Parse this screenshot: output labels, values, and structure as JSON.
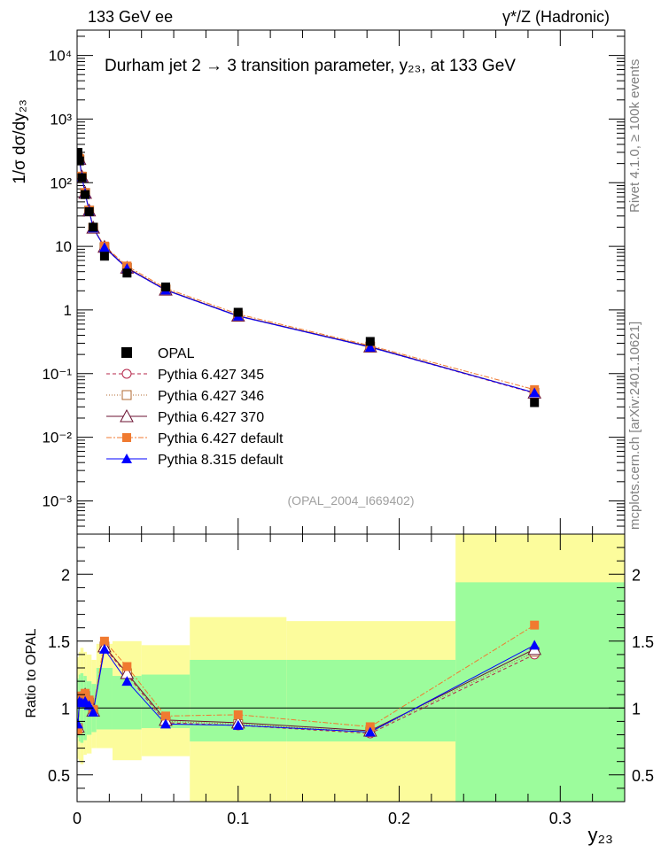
{
  "header": {
    "left_label": "133 GeV ee",
    "right_label": "γ*/Z (Hadronic)",
    "side_label_top": "Rivet 4.1.0, ≥ 100k events",
    "side_label_bottom": "mcplots.cern.ch [arXiv:2401.10621]"
  },
  "chart_data": [
    {
      "type": "scatter",
      "panel": "main",
      "title": "Durham jet 2  →  3 transition parameter, y₂₃, at 133 GeV",
      "ylabel": "1/σ  dσ/dy₂₃",
      "yscale": "log",
      "ylim": [
        0.0003,
        25000
      ],
      "xlim": [
        0,
        0.34
      ],
      "ytick_labels": [
        "10⁴",
        "10³",
        "10²",
        "10",
        "1",
        "10⁻¹",
        "10⁻²",
        "10⁻³"
      ],
      "watermark": "(OPAL_2004_I669402)",
      "x": [
        0.0005,
        0.0015,
        0.003,
        0.005,
        0.0075,
        0.01,
        0.017,
        0.031,
        0.055,
        0.1,
        0.182,
        0.284
      ],
      "series": [
        {
          "name": "OPAL",
          "color": "#000000",
          "marker": "square",
          "values": [
            300,
            220,
            120,
            65,
            35,
            20,
            7,
            3.8,
            2.3,
            0.92,
            0.32,
            0.035
          ]
        },
        {
          "name": "Pythia 6.427 345",
          "color": "#b5264a",
          "marker": "circle-open",
          "dash": "4,3",
          "values": [
            245,
            225,
            122,
            68,
            36,
            19.5,
            9.5,
            4.5,
            2.05,
            0.8,
            0.26,
            0.049
          ]
        },
        {
          "name": "Pythia 6.427 346",
          "color": "#b06a30",
          "marker": "square-open",
          "dash": "1,2",
          "values": [
            250,
            230,
            124,
            69,
            36.5,
            19.6,
            9.7,
            4.6,
            2.1,
            0.81,
            0.265,
            0.05
          ]
        },
        {
          "name": "Pythia 6.427 370",
          "color": "#6b1030",
          "marker": "triangle-open",
          "dash": "",
          "values": [
            265,
            235,
            125,
            69,
            36.5,
            19.6,
            9.8,
            4.6,
            2.08,
            0.81,
            0.265,
            0.05
          ]
        },
        {
          "name": "Pythia 6.427 default",
          "color": "#f07a30",
          "marker": "square",
          "dash": "6,2,2,2",
          "values": [
            255,
            240,
            127,
            70,
            36.8,
            19.8,
            10.1,
            4.9,
            2.2,
            0.86,
            0.275,
            0.056
          ]
        },
        {
          "name": "Pythia 8.315 default",
          "color": "#0000ff",
          "marker": "triangle",
          "dash": "",
          "values": [
            270,
            230,
            123,
            68,
            36,
            19.4,
            9.6,
            4.5,
            2.05,
            0.8,
            0.26,
            0.05
          ]
        }
      ]
    },
    {
      "type": "line",
      "panel": "ratio",
      "ylabel": "Ratio to OPAL",
      "xlabel": "y₂₃",
      "ylim": [
        0.3,
        2.3
      ],
      "xlim": [
        0,
        0.34
      ],
      "ytick_labels": [
        "2",
        "1.5",
        "1",
        "0.5"
      ],
      "ytick_labels_right": [
        "2",
        "1.5",
        "1",
        "0.5"
      ],
      "xtick_labels": [
        "0",
        "0.1",
        "0.2",
        "0.3"
      ],
      "x": [
        0.0005,
        0.0015,
        0.003,
        0.005,
        0.0075,
        0.01,
        0.017,
        0.031,
        0.055,
        0.1,
        0.182,
        0.284
      ],
      "bands": {
        "bin_edges": [
          0,
          0.001,
          0.002,
          0.004,
          0.006,
          0.009,
          0.012,
          0.022,
          0.04,
          0.07,
          0.13,
          0.235,
          0.34
        ],
        "inner_color": "#9cfc9c",
        "outer_color": "#fcfc9c",
        "inner_low": [
          0.78,
          0.75,
          0.74,
          0.76,
          0.8,
          0.82,
          0.84,
          0.84,
          0.85,
          0.75,
          0.75,
          0.3
        ],
        "inner_high": [
          1.22,
          1.25,
          1.26,
          1.24,
          1.2,
          1.18,
          1.3,
          1.24,
          1.25,
          1.36,
          1.36,
          1.94
        ],
        "outer_low": [
          0.62,
          0.6,
          0.58,
          0.65,
          0.66,
          0.7,
          0.7,
          0.61,
          0.64,
          0.3,
          0.3,
          0.3
        ],
        "outer_high": [
          1.38,
          1.42,
          1.45,
          1.42,
          1.4,
          1.36,
          1.48,
          1.5,
          1.47,
          1.68,
          1.65,
          2.3
        ]
      },
      "series": [
        {
          "name": "Pythia 6.427 345",
          "color": "#b5264a",
          "marker": "circle-open",
          "dash": "4,3",
          "values": [
            0.84,
            1.05,
            1.05,
            1.08,
            1.03,
            0.98,
            1.45,
            1.25,
            0.89,
            0.87,
            0.81,
            1.4
          ]
        },
        {
          "name": "Pythia 6.427 346",
          "color": "#b06a30",
          "marker": "square-open",
          "dash": "1,2",
          "values": [
            0.85,
            1.06,
            1.06,
            1.09,
            1.04,
            0.98,
            1.46,
            1.26,
            0.9,
            0.88,
            0.82,
            1.42
          ]
        },
        {
          "name": "Pythia 6.427 370",
          "color": "#6b1030",
          "marker": "triangle-open",
          "dash": "",
          "values": [
            0.86,
            1.07,
            1.07,
            1.1,
            1.05,
            0.98,
            1.46,
            1.26,
            0.91,
            0.89,
            0.83,
            1.44
          ]
        },
        {
          "name": "Pythia 6.427 default",
          "color": "#f07a30",
          "marker": "square",
          "dash": "6,2,2,2",
          "values": [
            0.84,
            1.09,
            1.08,
            1.11,
            1.06,
            0.99,
            1.5,
            1.31,
            0.94,
            0.95,
            0.86,
            1.62
          ]
        },
        {
          "name": "Pythia 8.315 default",
          "color": "#0000ff",
          "marker": "triangle",
          "dash": "",
          "values": [
            0.88,
            1.05,
            1.04,
            1.05,
            1.02,
            0.97,
            1.44,
            1.2,
            0.88,
            0.87,
            0.82,
            1.47
          ]
        }
      ]
    }
  ]
}
